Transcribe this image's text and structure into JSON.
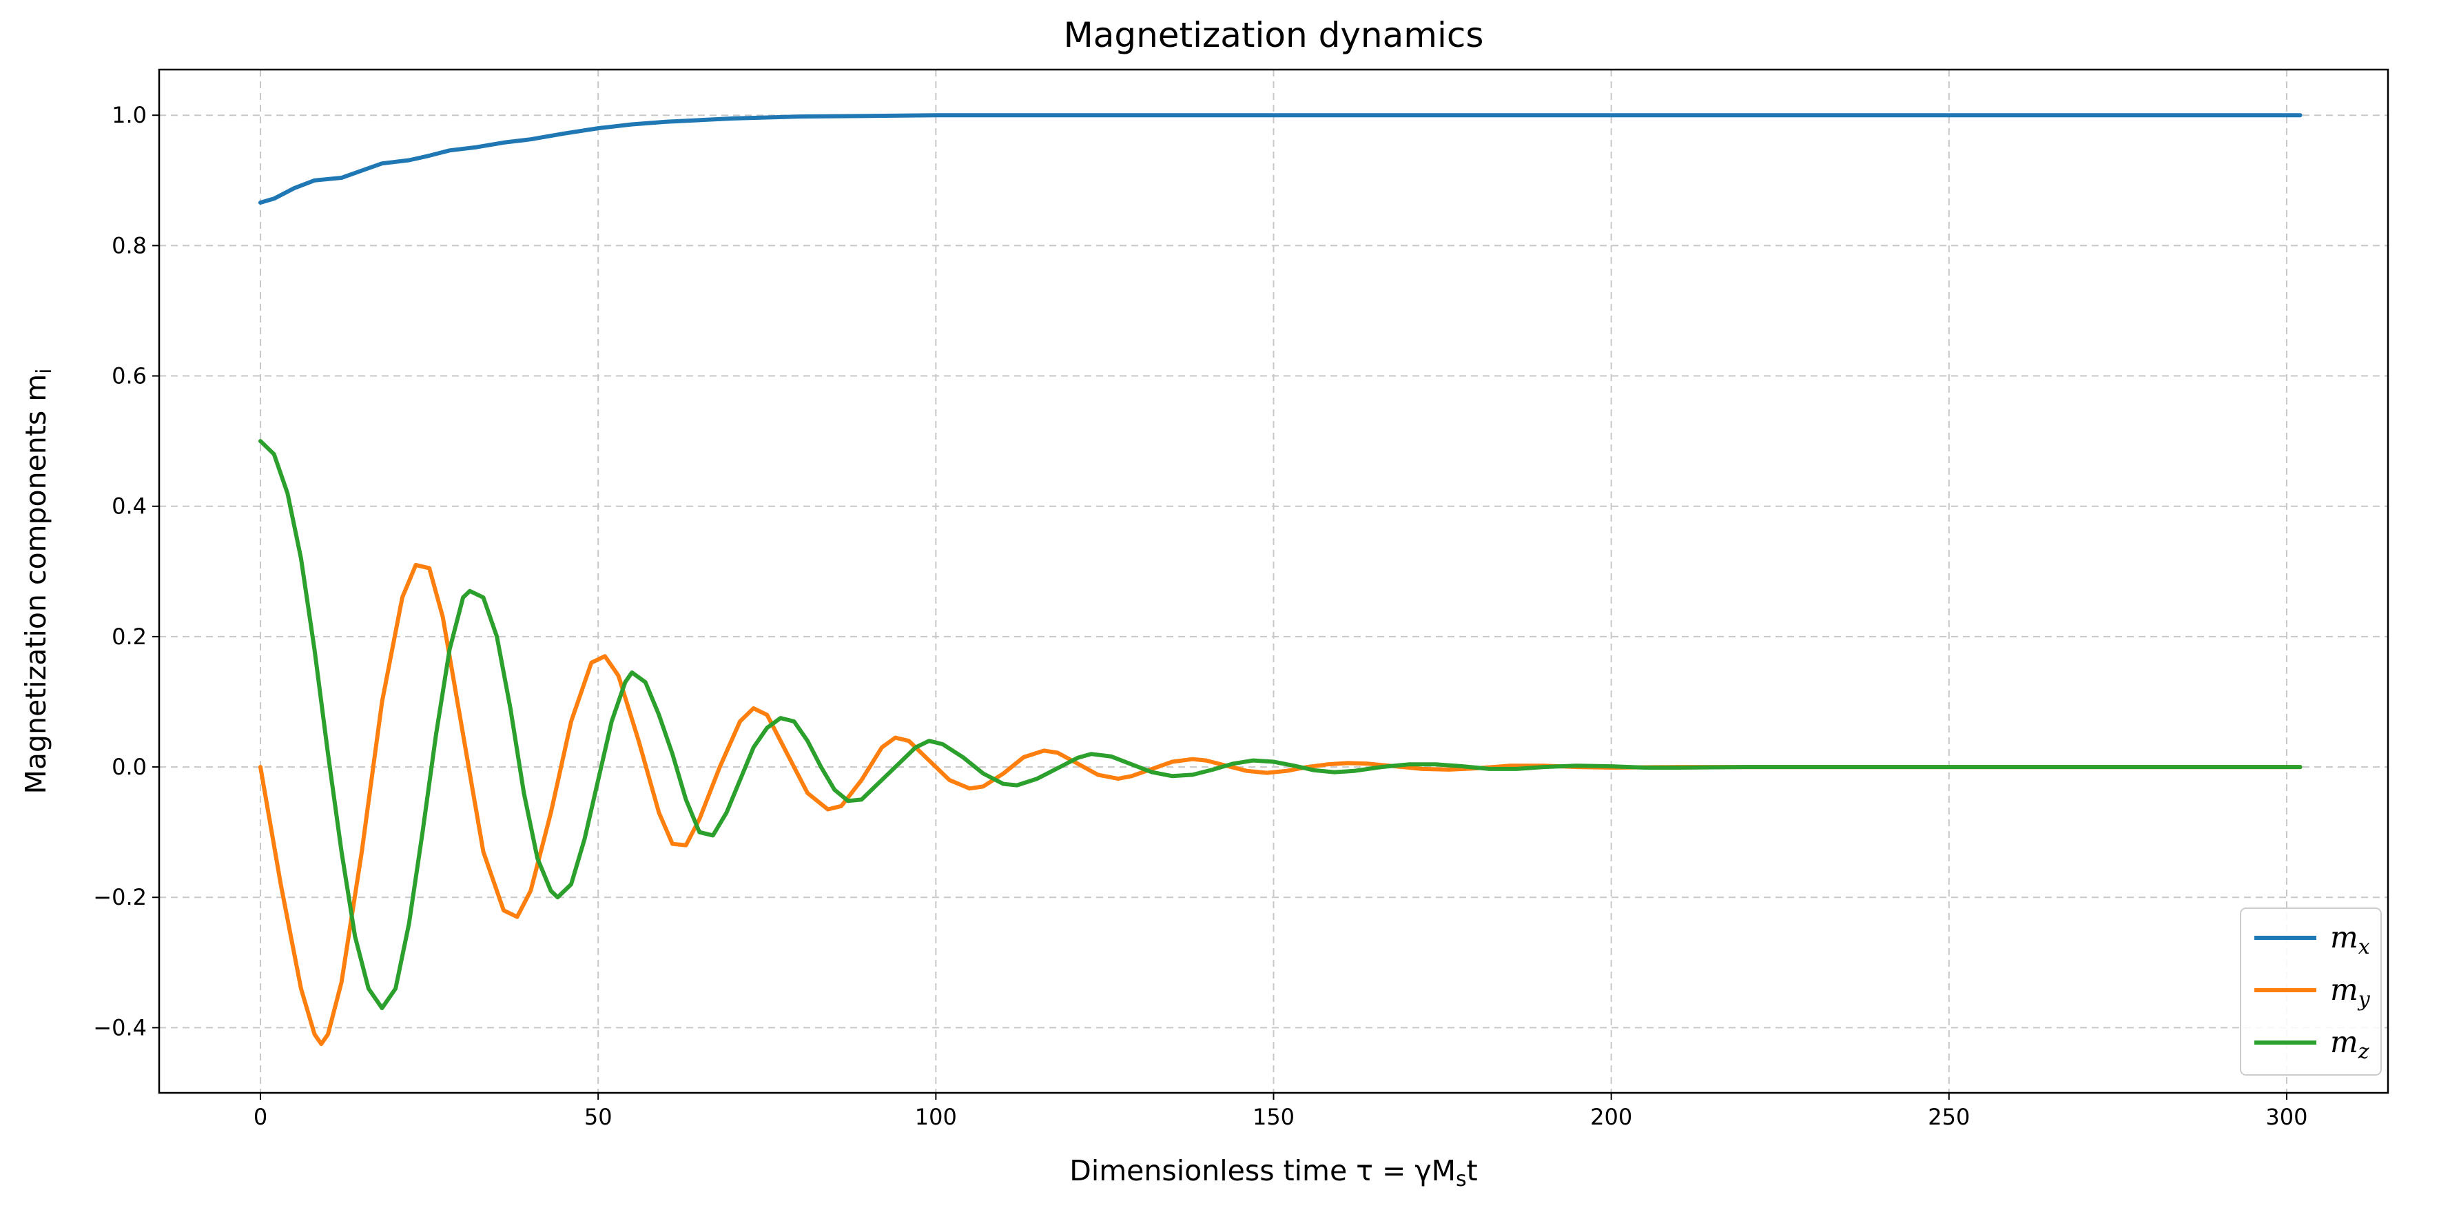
{
  "chart_data": {
    "type": "line",
    "title": "Magnetization dynamics",
    "xlabel": "Dimensionless time τ = γM",
    "xlabel_sub": "s",
    "xlabel_tail": "t",
    "ylabel": "Magnetization components m",
    "ylabel_sub": "i",
    "xlim": [
      -15,
      315
    ],
    "ylim": [
      -0.5,
      1.07
    ],
    "xticks": [
      0,
      50,
      100,
      150,
      200,
      250,
      300
    ],
    "xtick_labels": [
      "0",
      "50",
      "100",
      "150",
      "200",
      "250",
      "300"
    ],
    "yticks": [
      -0.4,
      -0.2,
      0.0,
      0.2,
      0.4,
      0.6,
      0.8,
      1.0
    ],
    "ytick_labels": [
      "−0.4",
      "−0.2",
      "0.0",
      "0.2",
      "0.4",
      "0.6",
      "0.8",
      "1.0"
    ],
    "grid": true,
    "legend_position": "lower-right",
    "series": [
      {
        "name": "m_x",
        "label_base": "m",
        "label_sub": "x",
        "color": "#1f77b4",
        "points": [
          [
            0,
            0.866
          ],
          [
            2,
            0.872
          ],
          [
            5,
            0.888
          ],
          [
            8,
            0.9
          ],
          [
            12,
            0.904
          ],
          [
            15,
            0.915
          ],
          [
            18,
            0.926
          ],
          [
            22,
            0.931
          ],
          [
            25,
            0.938
          ],
          [
            28,
            0.946
          ],
          [
            32,
            0.951
          ],
          [
            36,
            0.958
          ],
          [
            40,
            0.963
          ],
          [
            45,
            0.972
          ],
          [
            50,
            0.98
          ],
          [
            55,
            0.986
          ],
          [
            60,
            0.99
          ],
          [
            70,
            0.995
          ],
          [
            80,
            0.998
          ],
          [
            90,
            0.999
          ],
          [
            100,
            1.0
          ],
          [
            150,
            1.0
          ],
          [
            200,
            1.0
          ],
          [
            250,
            1.0
          ],
          [
            302,
            1.0
          ]
        ]
      },
      {
        "name": "m_y",
        "label_base": "m",
        "label_sub": "y",
        "color": "#ff7f0e",
        "points": [
          [
            0,
            0.0
          ],
          [
            3,
            -0.18
          ],
          [
            6,
            -0.34
          ],
          [
            8,
            -0.41
          ],
          [
            9,
            -0.425
          ],
          [
            10,
            -0.41
          ],
          [
            12,
            -0.33
          ],
          [
            15,
            -0.13
          ],
          [
            18,
            0.1
          ],
          [
            21,
            0.26
          ],
          [
            23,
            0.31
          ],
          [
            25,
            0.305
          ],
          [
            27,
            0.23
          ],
          [
            30,
            0.05
          ],
          [
            33,
            -0.13
          ],
          [
            36,
            -0.22
          ],
          [
            38,
            -0.23
          ],
          [
            40,
            -0.19
          ],
          [
            43,
            -0.07
          ],
          [
            46,
            0.07
          ],
          [
            49,
            0.16
          ],
          [
            51,
            0.17
          ],
          [
            53,
            0.14
          ],
          [
            56,
            0.04
          ],
          [
            59,
            -0.07
          ],
          [
            61,
            -0.118
          ],
          [
            63,
            -0.12
          ],
          [
            65,
            -0.08
          ],
          [
            68,
            0.0
          ],
          [
            71,
            0.07
          ],
          [
            73,
            0.09
          ],
          [
            75,
            0.08
          ],
          [
            78,
            0.02
          ],
          [
            81,
            -0.04
          ],
          [
            84,
            -0.065
          ],
          [
            86,
            -0.06
          ],
          [
            89,
            -0.02
          ],
          [
            92,
            0.03
          ],
          [
            94,
            0.045
          ],
          [
            96,
            0.04
          ],
          [
            99,
            0.01
          ],
          [
            102,
            -0.02
          ],
          [
            105,
            -0.033
          ],
          [
            107,
            -0.03
          ],
          [
            110,
            -0.01
          ],
          [
            113,
            0.015
          ],
          [
            116,
            0.025
          ],
          [
            118,
            0.022
          ],
          [
            121,
            0.005
          ],
          [
            124,
            -0.012
          ],
          [
            127,
            -0.018
          ],
          [
            129,
            -0.014
          ],
          [
            132,
            -0.003
          ],
          [
            135,
            0.008
          ],
          [
            138,
            0.012
          ],
          [
            140,
            0.01
          ],
          [
            143,
            0.002
          ],
          [
            146,
            -0.006
          ],
          [
            149,
            -0.009
          ],
          [
            152,
            -0.006
          ],
          [
            155,
            0.0
          ],
          [
            158,
            0.004
          ],
          [
            161,
            0.006
          ],
          [
            164,
            0.005
          ],
          [
            168,
            0.001
          ],
          [
            172,
            -0.003
          ],
          [
            176,
            -0.004
          ],
          [
            180,
            -0.002
          ],
          [
            185,
            0.002
          ],
          [
            190,
            0.002
          ],
          [
            195,
            0.0
          ],
          [
            200,
            -0.001
          ],
          [
            210,
            0.0
          ],
          [
            220,
            0.0
          ],
          [
            250,
            0.0
          ],
          [
            302,
            0.0
          ]
        ]
      },
      {
        "name": "m_z",
        "label_base": "m",
        "label_sub": "z",
        "color": "#2ca02c",
        "points": [
          [
            0,
            0.5
          ],
          [
            2,
            0.48
          ],
          [
            4,
            0.42
          ],
          [
            6,
            0.32
          ],
          [
            8,
            0.18
          ],
          [
            10,
            0.02
          ],
          [
            12,
            -0.13
          ],
          [
            14,
            -0.26
          ],
          [
            16,
            -0.34
          ],
          [
            18,
            -0.37
          ],
          [
            20,
            -0.34
          ],
          [
            22,
            -0.24
          ],
          [
            24,
            -0.1
          ],
          [
            26,
            0.05
          ],
          [
            28,
            0.18
          ],
          [
            30,
            0.26
          ],
          [
            31,
            0.27
          ],
          [
            33,
            0.26
          ],
          [
            35,
            0.2
          ],
          [
            37,
            0.09
          ],
          [
            39,
            -0.04
          ],
          [
            41,
            -0.14
          ],
          [
            43,
            -0.19
          ],
          [
            44,
            -0.2
          ],
          [
            46,
            -0.18
          ],
          [
            48,
            -0.11
          ],
          [
            50,
            -0.02
          ],
          [
            52,
            0.07
          ],
          [
            54,
            0.13
          ],
          [
            55,
            0.145
          ],
          [
            57,
            0.13
          ],
          [
            59,
            0.08
          ],
          [
            61,
            0.02
          ],
          [
            63,
            -0.05
          ],
          [
            65,
            -0.1
          ],
          [
            67,
            -0.105
          ],
          [
            69,
            -0.07
          ],
          [
            71,
            -0.02
          ],
          [
            73,
            0.03
          ],
          [
            75,
            0.06
          ],
          [
            77,
            0.075
          ],
          [
            79,
            0.07
          ],
          [
            81,
            0.04
          ],
          [
            83,
            0.0
          ],
          [
            85,
            -0.035
          ],
          [
            87,
            -0.052
          ],
          [
            89,
            -0.05
          ],
          [
            91,
            -0.03
          ],
          [
            94,
            0.0
          ],
          [
            97,
            0.03
          ],
          [
            99,
            0.04
          ],
          [
            101,
            0.035
          ],
          [
            104,
            0.015
          ],
          [
            107,
            -0.01
          ],
          [
            110,
            -0.026
          ],
          [
            112,
            -0.028
          ],
          [
            115,
            -0.018
          ],
          [
            118,
            -0.002
          ],
          [
            121,
            0.014
          ],
          [
            123,
            0.02
          ],
          [
            126,
            0.016
          ],
          [
            129,
            0.004
          ],
          [
            132,
            -0.008
          ],
          [
            135,
            -0.014
          ],
          [
            138,
            -0.012
          ],
          [
            141,
            -0.004
          ],
          [
            144,
            0.005
          ],
          [
            147,
            0.01
          ],
          [
            150,
            0.008
          ],
          [
            153,
            0.002
          ],
          [
            156,
            -0.005
          ],
          [
            159,
            -0.008
          ],
          [
            162,
            -0.006
          ],
          [
            166,
            0.0
          ],
          [
            170,
            0.004
          ],
          [
            174,
            0.004
          ],
          [
            178,
            0.001
          ],
          [
            182,
            -0.003
          ],
          [
            186,
            -0.003
          ],
          [
            190,
            0.0
          ],
          [
            195,
            0.002
          ],
          [
            200,
            0.001
          ],
          [
            205,
            -0.001
          ],
          [
            210,
            -0.001
          ],
          [
            220,
            0.0
          ],
          [
            250,
            0.0
          ],
          [
            302,
            0.0
          ]
        ]
      }
    ]
  }
}
